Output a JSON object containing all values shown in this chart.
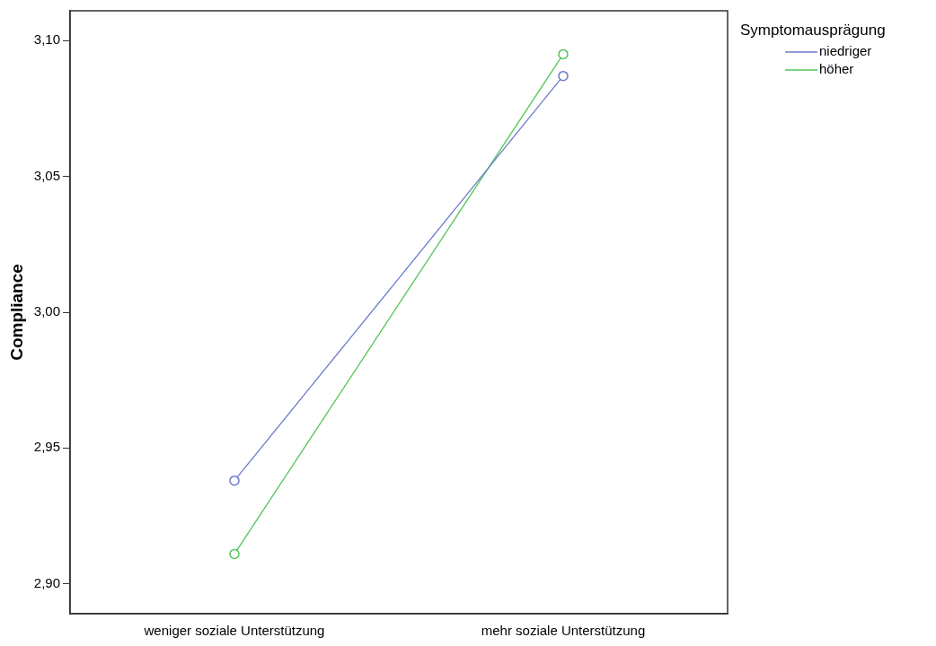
{
  "chart_data": {
    "type": "line",
    "ylabel": "Compliance",
    "legend_title": "Symptomausprägung",
    "legend": "top right",
    "marker": "circle",
    "line_style": "solid",
    "grid": false,
    "categories": [
      "weniger soziale Unterstützung",
      "mehr soziale Unterstützung"
    ],
    "ylim": [
      2.889,
      3.111
    ],
    "yticks": [
      {
        "value": 2.9,
        "label": "2,90"
      },
      {
        "value": 2.95,
        "label": "2,95"
      },
      {
        "value": 3.0,
        "label": "3,00"
      },
      {
        "value": 3.05,
        "label": "3,05"
      },
      {
        "value": 3.1,
        "label": "3,10"
      }
    ],
    "series": [
      {
        "name": "niedriger",
        "color": "#6b7bc9",
        "values": [
          2.938,
          3.087
        ]
      },
      {
        "name": "höher",
        "color": "#52c55a",
        "values": [
          2.911,
          3.095
        ]
      }
    ]
  }
}
